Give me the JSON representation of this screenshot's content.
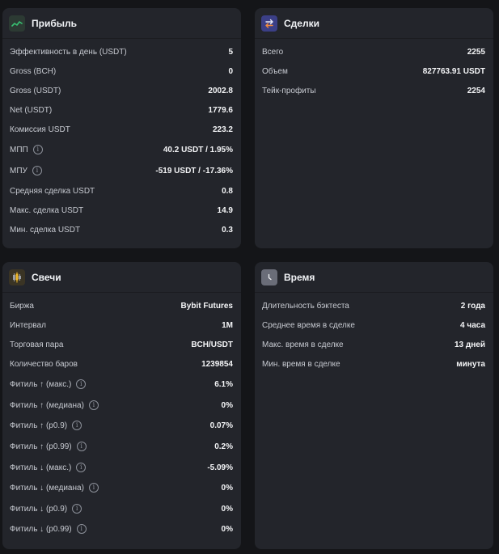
{
  "profit": {
    "title": "Прибыль",
    "icon": "trend-chart-icon",
    "rows": [
      {
        "label": "Эффективность в день (USDT)",
        "value": "5"
      },
      {
        "label": "Gross (BCH)",
        "value": "0"
      },
      {
        "label": "Gross (USDT)",
        "value": "2002.8"
      },
      {
        "label": "Net (USDT)",
        "value": "1779.6"
      },
      {
        "label": "Комиссия USDT",
        "value": "223.2"
      },
      {
        "label": "МПП",
        "value": "40.2 USDT / 1.95%"
      },
      {
        "label": "МПУ",
        "value": "-519 USDT / -17.36%"
      },
      {
        "label": "Средняя сделка USDT",
        "value": "0.8"
      },
      {
        "label": "Макс. сделка USDT",
        "value": "14.9"
      },
      {
        "label": "Мин. сделка USDT",
        "value": "0.3"
      }
    ]
  },
  "deals": {
    "title": "Сделки",
    "icon": "swap-arrows-icon",
    "rows": [
      {
        "label": "Всего",
        "value": "2255"
      },
      {
        "label": "Объем",
        "value": "827763.91 USDT"
      },
      {
        "label": "Тейк-профиты",
        "value": "2254"
      }
    ]
  },
  "candles": {
    "title": "Свечи",
    "icon": "candlestick-icon",
    "rows": [
      {
        "label": "Биржа",
        "value": "Bybit Futures"
      },
      {
        "label": "Интервал",
        "value": "1M"
      },
      {
        "label": "Торговая пара",
        "value": "BCH/USDT"
      },
      {
        "label": "Количество баров",
        "value": "1239854"
      },
      {
        "label": "Фитиль ↑ (макс.)",
        "value": "6.1%"
      },
      {
        "label": "Фитиль ↑ (медиана)",
        "value": "0%"
      },
      {
        "label": "Фитиль ↑ (p0.9)",
        "value": "0.07%"
      },
      {
        "label": "Фитиль ↑ (p0.99)",
        "value": "0.2%"
      },
      {
        "label": "Фитиль ↓ (макс.)",
        "value": "-5.09%"
      },
      {
        "label": "Фитиль ↓ (медиана)",
        "value": "0%"
      },
      {
        "label": "Фитиль ↓ (p0.9)",
        "value": "0%"
      },
      {
        "label": "Фитиль ↓ (p0.99)",
        "value": "0%"
      }
    ]
  },
  "time": {
    "title": "Время",
    "icon": "clock-icon",
    "rows": [
      {
        "label": "Длительность бэктеста",
        "value": "2 года"
      },
      {
        "label": "Среднее время в сделке",
        "value": "4 часа"
      },
      {
        "label": "Макс. время в сделке",
        "value": "13 дней"
      },
      {
        "label": "Мин. время в сделке",
        "value": "минута"
      }
    ]
  },
  "info_icon_glyph": "i",
  "colors": {
    "background": "#141518",
    "panel": "#23252b",
    "profit_icon_bg": "#2c3a33",
    "profit_icon_fg": "#38c172",
    "deals_icon_bg": "#3b3f86",
    "candles_icon_bg": "#3a3424",
    "candles_up": "#f1b828",
    "candles_mid": "#9a9ea6",
    "time_icon_bg": "#6a6d78"
  }
}
